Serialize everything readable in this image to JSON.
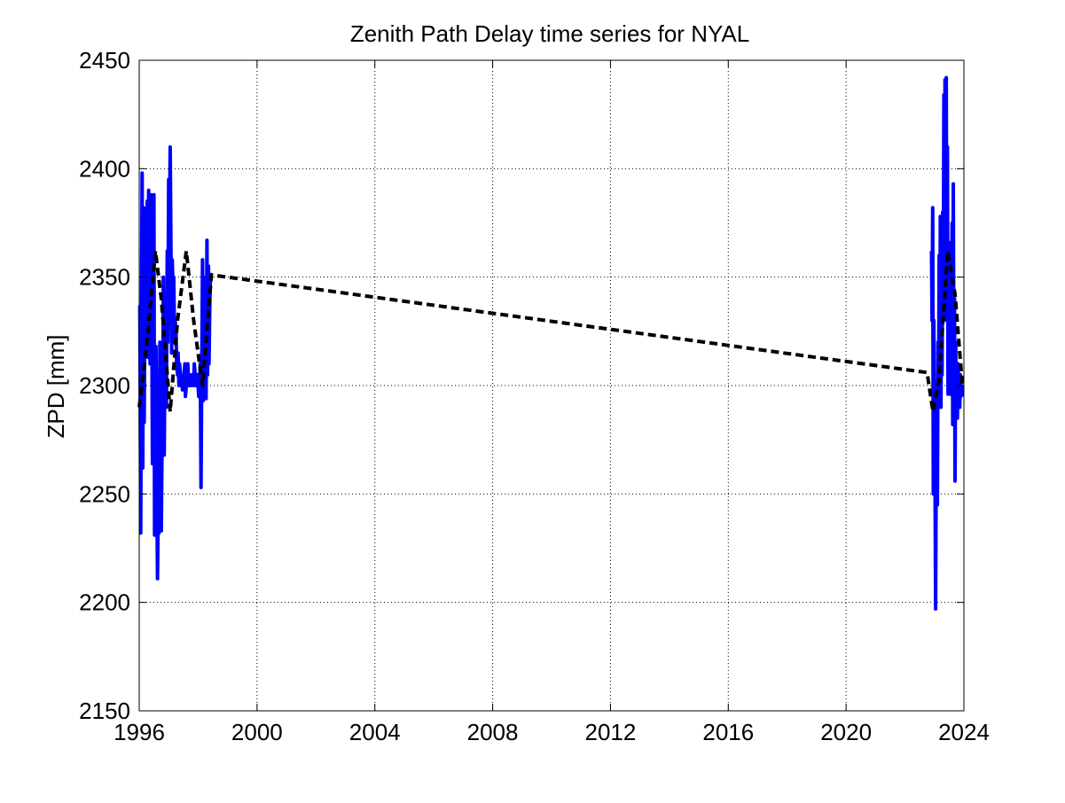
{
  "chart_data": {
    "type": "line",
    "title": "Zenith Path Delay time series for NYAL",
    "xlabel": "",
    "ylabel": "ZPD [mm]",
    "xlim": [
      1996,
      2024
    ],
    "ylim": [
      2150,
      2450
    ],
    "xticks": [
      1996,
      2000,
      2004,
      2008,
      2012,
      2016,
      2020,
      2024
    ],
    "yticks": [
      2150,
      2200,
      2250,
      2300,
      2350,
      2400,
      2450
    ],
    "xtick_labels": [
      "1996",
      "2000",
      "2004",
      "2008",
      "2012",
      "2016",
      "2020",
      "2024"
    ],
    "ytick_labels": [
      "2150",
      "2200",
      "2250",
      "2300",
      "2350",
      "2400",
      "2450"
    ],
    "grid": true,
    "legend": false,
    "series": [
      {
        "style": "solid",
        "color": "#0000ff",
        "x": [
          1996.02,
          1996.05,
          1996.07,
          1996.1,
          1996.12,
          1996.15,
          1996.17,
          1996.2,
          1996.22,
          1996.25,
          1996.27,
          1996.3,
          1996.32,
          1996.35,
          1996.37,
          1996.4,
          1996.42,
          1996.45,
          1996.47,
          1996.5,
          1996.52,
          1996.55,
          1996.57,
          1996.6,
          1996.62,
          1996.65,
          1996.67,
          1996.7,
          1996.72,
          1996.75,
          1996.77,
          1996.8,
          1996.82,
          1996.85,
          1996.87,
          1996.9,
          1996.92,
          1996.95,
          1996.97,
          1997.0,
          1997.02,
          1997.05,
          1997.07,
          1997.1,
          1997.12,
          1997.15,
          1997.17,
          1997.2,
          1997.22,
          1997.25,
          1997.27,
          1997.3,
          1997.32,
          1997.35,
          1997.37,
          1997.4,
          1997.42,
          1997.45,
          1997.47,
          1997.5,
          1997.52,
          1997.55,
          1997.57,
          1997.6,
          1997.62,
          1997.65,
          1997.67,
          1997.7,
          1997.72,
          1997.75,
          1997.77,
          1997.8,
          1997.82,
          1997.85,
          1997.87,
          1997.9,
          1997.92,
          1997.95,
          1997.97,
          1998.0,
          1998.02,
          1998.05,
          1998.07,
          1998.1,
          1998.12,
          1998.15,
          1998.17,
          1998.2,
          1998.22,
          1998.25,
          1998.27,
          1998.3,
          1998.32,
          1998.35,
          1998.37,
          1998.4,
          1998.42
        ],
        "y": [
          2337,
          2232,
          2310,
          2398,
          2262,
          2382,
          2283,
          2355,
          2371,
          2320,
          2385,
          2313,
          2390,
          2340,
          2310,
          2388,
          2350,
          2264,
          2322,
          2388,
          2231,
          2268,
          2318,
          2253,
          2211,
          2250,
          2232,
          2320,
          2300,
          2233,
          2266,
          2290,
          2350,
          2268,
          2313,
          2340,
          2290,
          2362,
          2320,
          2395,
          2360,
          2410,
          2380,
          2315,
          2358,
          2345,
          2350,
          2320,
          2330,
          2325,
          2310,
          2305,
          2315,
          2300,
          2310,
          2305,
          2300,
          2302,
          2298,
          2300,
          2305,
          2310,
          2295,
          2300,
          2305,
          2310,
          2300,
          2305,
          2300,
          2302,
          2300,
          2305,
          2302,
          2300,
          2310,
          2305,
          2300,
          2303,
          2305,
          2300,
          2295,
          2300,
          2310,
          2253,
          2300,
          2358,
          2293,
          2340,
          2296,
          2350,
          2294,
          2367,
          2305,
          2355,
          2310,
          2340,
          2352
        ]
      },
      {
        "style": "solid",
        "color": "#0000ff",
        "x": [
          2022.9,
          2022.92,
          2022.94,
          2022.96,
          2022.98,
          2023.0,
          2023.02,
          2023.04,
          2023.06,
          2023.08,
          2023.1,
          2023.12,
          2023.14,
          2023.16,
          2023.18,
          2023.2,
          2023.22,
          2023.24,
          2023.26,
          2023.28,
          2023.3,
          2023.32,
          2023.34,
          2023.36,
          2023.38,
          2023.4,
          2023.42,
          2023.44,
          2023.46,
          2023.48,
          2023.5,
          2023.52,
          2023.54,
          2023.56,
          2023.58,
          2023.6,
          2023.62,
          2023.64,
          2023.66,
          2023.68,
          2023.7,
          2023.72,
          2023.74,
          2023.76,
          2023.78,
          2023.8,
          2023.82,
          2023.84,
          2023.86,
          2023.88,
          2023.9,
          2023.92,
          2023.94
        ],
        "y": [
          2362,
          2330,
          2382,
          2250,
          2330,
          2285,
          2260,
          2197,
          2270,
          2300,
          2245,
          2320,
          2290,
          2360,
          2300,
          2378,
          2290,
          2340,
          2305,
          2380,
          2330,
          2434,
          2360,
          2441,
          2390,
          2442,
          2330,
          2410,
          2296,
          2365,
          2300,
          2356,
          2296,
          2366,
          2320,
          2375,
          2282,
          2393,
          2310,
          2340,
          2256,
          2320,
          2290,
          2300,
          2285,
          2310,
          2295,
          2300,
          2290,
          2305,
          2295,
          2300,
          2295
        ]
      },
      {
        "style": "dashed",
        "color": "#000000",
        "x": [
          1996.0,
          1996.25,
          1996.55,
          1996.75,
          1997.05,
          1997.3,
          1997.6,
          1997.85,
          1998.15,
          1998.45,
          2022.75,
          2022.95,
          2023.15,
          2023.45,
          2023.7,
          2023.95
        ],
        "y": [
          2290,
          2318,
          2362,
          2340,
          2288,
          2330,
          2362,
          2330,
          2300,
          2351,
          2306,
          2288,
          2302,
          2362,
          2342,
          2300
        ]
      }
    ]
  }
}
